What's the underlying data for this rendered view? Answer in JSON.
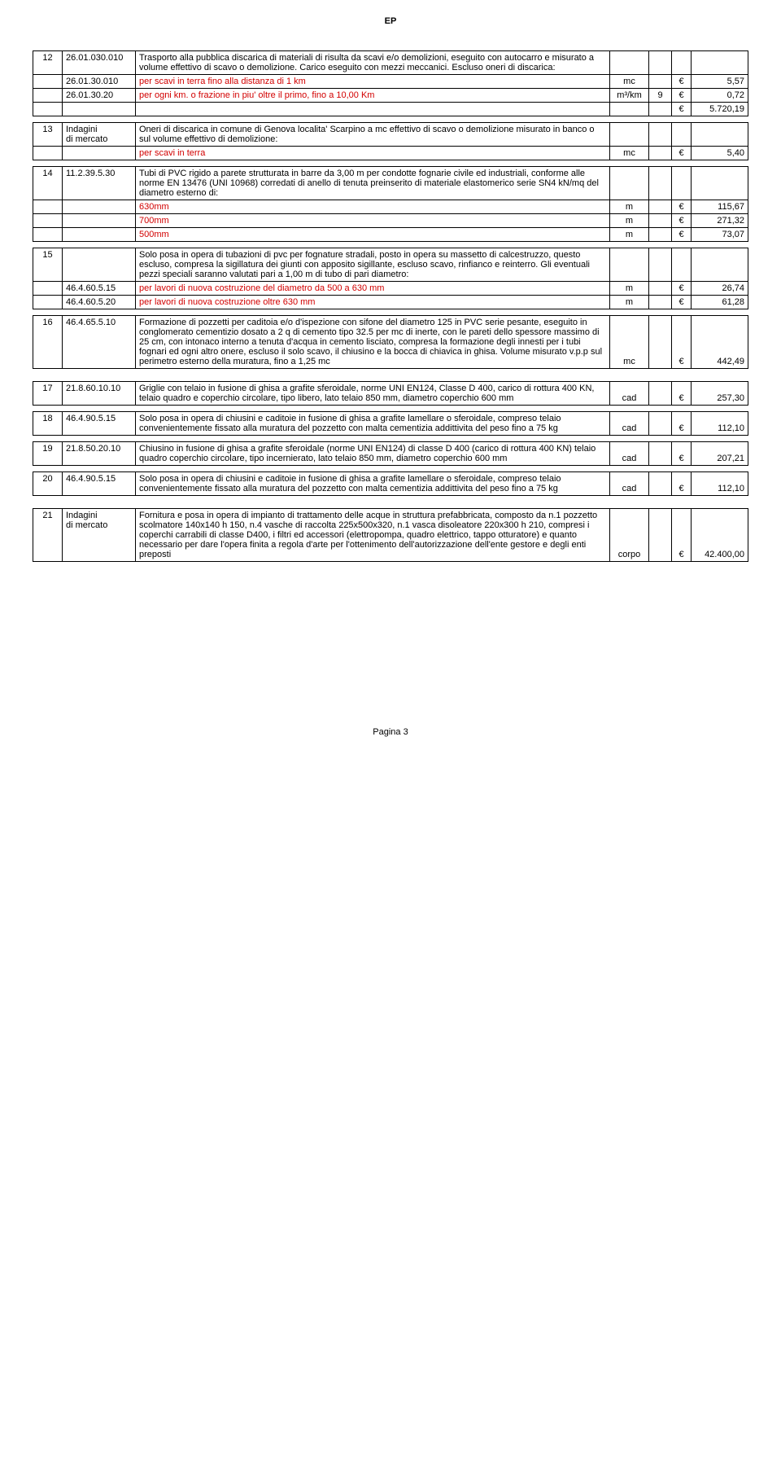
{
  "header": "EP",
  "footer": "Pagina 3",
  "col_widths": [
    "36px",
    "90px",
    "auto",
    "48px",
    "28px",
    "24px",
    "70px"
  ],
  "rows": [
    {
      "type": "data",
      "cells": [
        "12",
        "26.01.030.010",
        "Trasporto alla pubblica discarica di materiali  di risulta  da  scavi e/o demolizioni,  eseguito  con autocarro e misurato a volume effettivo di scavo o demolizione.  Carico eseguito con mezzi meccanici. Escluso oneri di discarica:",
        "",
        "",
        "",
        ""
      ]
    },
    {
      "type": "data",
      "cells": [
        "",
        "26.01.30.010",
        "per scavi in terra fino alla distanza di 1 km",
        "mc",
        "",
        "€",
        "5,57"
      ],
      "red_desc": true,
      "c4": "center",
      "c6": "center",
      "c7": "right"
    },
    {
      "type": "data",
      "cells": [
        "",
        "26.01.30.20",
        "per ogni km. o frazione in piu' oltre il primo, fino a 10,00 Km",
        "m³/km",
        "9",
        "€",
        "0,72"
      ],
      "red_desc": true,
      "c4": "center",
      "c5": "center",
      "c6": "center",
      "c7": "right"
    },
    {
      "type": "data",
      "cells": [
        "",
        "",
        "",
        "",
        "",
        "€",
        "5.720,19"
      ],
      "c6": "center",
      "c7": "right"
    },
    {
      "type": "spacer"
    },
    {
      "type": "data",
      "cells": [
        "13",
        "Indagini\ndi mercato",
        "Oneri di discarica in comune di Genova localita' Scarpino  a mc effettivo di scavo o demolizione misurato in banco o sul volume effettivo di demolizione:",
        "",
        "",
        "",
        ""
      ]
    },
    {
      "type": "data",
      "cells": [
        "",
        "",
        "per scavi in terra",
        "mc",
        "",
        "€",
        "5,40"
      ],
      "red_desc": true,
      "c4": "center",
      "c6": "center",
      "c7": "right"
    },
    {
      "type": "spacer"
    },
    {
      "type": "data",
      "cells": [
        "14",
        "11.2.39.5.30",
        "Tubi di PVC rigido a parete strutturata in barre da 3,00 m per condotte fognarie civile ed industriali, conforme alle norme EN 13476 (UNI 10968) corredati di anello di tenuta preinserito di materiale elastomerico serie SN4 kN/mq del diametro esterno di:",
        "",
        "",
        "",
        ""
      ]
    },
    {
      "type": "data",
      "cells": [
        "",
        "",
        "630mm",
        "m",
        "",
        "€",
        "115,67"
      ],
      "red_desc": true,
      "c4": "center",
      "c6": "center",
      "c7": "right"
    },
    {
      "type": "data",
      "cells": [
        "",
        "",
        "700mm",
        "m",
        "",
        "€",
        "271,32"
      ],
      "red_desc": true,
      "c4": "center",
      "c6": "center",
      "c7": "right"
    },
    {
      "type": "data",
      "cells": [
        "",
        "",
        "500mm",
        "m",
        "",
        "€",
        "73,07"
      ],
      "red_desc": true,
      "c4": "center",
      "c6": "center",
      "c7": "right"
    },
    {
      "type": "spacer"
    },
    {
      "type": "data",
      "cells": [
        "15",
        "",
        "Solo posa in opera di tubazioni di pvc per fognature stradali, posto in opera su massetto di calcestruzzo, questo escluso, compresa la sigillatura dei giunti con apposito sigillante, escluso scavo, rinfianco e reinterro. Gli eventuali pezzi speciali saranno valutati pari a 1,00 m di tubo di pari diametro:",
        "",
        "",
        "",
        ""
      ]
    },
    {
      "type": "data",
      "cells": [
        "",
        "46.4.60.5.15",
        "per lavori di nuova costruzione del diametro da 500 a 630 mm",
        "m",
        "",
        "€",
        "26,74"
      ],
      "red_desc": true,
      "c4": "center",
      "c6": "center",
      "c7": "right"
    },
    {
      "type": "data",
      "cells": [
        "",
        "46.4.60.5.20",
        "per lavori di nuova costruzione oltre 630 mm",
        "m",
        "",
        "€",
        "61,28"
      ],
      "red_desc": true,
      "c4": "center",
      "c6": "center",
      "c7": "right"
    },
    {
      "type": "spacer"
    },
    {
      "type": "data",
      "cells": [
        "16",
        "46.4.65.5.10",
        "Formazione di pozzetti per caditoia e/o d'ispezione con sifone del diametro 125 in PVC serie pesante, eseguito in conglomerato cementizio dosato a 2 q di cemento tipo 32.5 per mc di inerte, con le pareti dello spessore massimo di 25 cm, con intonaco interno a tenuta d'acqua in cemento lisciato, compresa la formazione degli innesti per i tubi fognari ed ogni altro onere, escluso il solo scavo, il chiusino e la bocca di chiavica in ghisa. Volume misurato v.p.p sul perimetro esterno della muratura, fino a 1,25 mc",
        "mc",
        "",
        "€",
        "442,49"
      ],
      "c4": "center",
      "c6": "center",
      "c7": "right",
      "valign_bottom": [
        "c4",
        "c6",
        "c7"
      ]
    },
    {
      "type": "spacer"
    },
    {
      "type": "spacer"
    },
    {
      "type": "data",
      "cells": [
        "17",
        "21.8.60.10.10",
        "Griglie con telaio in fusione di ghisa a grafite sferoidale, norme UNI EN124, Classe D 400, carico di rottura 400 KN, telaio quadro e coperchio circolare, tipo libero, lato telaio 850 mm, diametro coperchio 600 mm",
        "cad",
        "",
        "€",
        "257,30"
      ],
      "c4": "center",
      "c6": "center",
      "c7": "right",
      "valign_bottom": [
        "c4",
        "c6",
        "c7"
      ]
    },
    {
      "type": "spacer"
    },
    {
      "type": "data",
      "cells": [
        "18",
        "46.4.90.5.15",
        "Solo posa in opera di chiusini e caditoie in fusione di ghisa a grafite lamellare o sferoidale, compreso telaio convenientemente fissato alla muratura del pozzetto con malta cementizia addittivita del peso fino a 75 kg",
        "cad",
        "",
        "€",
        "112,10"
      ],
      "c4": "center",
      "c6": "center",
      "c7": "right",
      "valign_bottom": [
        "c4",
        "c6",
        "c7"
      ]
    },
    {
      "type": "spacer"
    },
    {
      "type": "data",
      "cells": [
        "19",
        "21.8.50.20.10",
        "Chiusino in fusione di ghisa a grafite sferoidale (norme UNI EN124) di classe D 400 (carico di rottura 400 KN) telaio quadro coperchio circolare, tipo incernierato, lato telaio 850 mm, diametro coperchio 600 mm",
        "cad",
        "",
        "€",
        "207,21"
      ],
      "c4": "center",
      "c6": "center",
      "c7": "right",
      "valign_bottom": [
        "c4",
        "c6",
        "c7"
      ]
    },
    {
      "type": "spacer"
    },
    {
      "type": "data",
      "cells": [
        "20",
        "46.4.90.5.15",
        "Solo posa in opera di chiusini e caditoie in fusione di ghisa a grafite lamellare o sferoidale, compreso telaio convenientemente fissato alla muratura del pozzetto con malta cementizia addittivita del peso fino a 75 kg",
        "cad",
        "",
        "€",
        "112,10"
      ],
      "c4": "center",
      "c6": "center",
      "c7": "right",
      "valign_bottom": [
        "c4",
        "c6",
        "c7"
      ]
    },
    {
      "type": "spacer"
    },
    {
      "type": "spacer"
    },
    {
      "type": "data",
      "cells": [
        "21",
        "Indagini\ndi mercato",
        "Fornitura e posa in opera di impianto di trattamento delle acque in struttura prefabbricata, composto da n.1 pozzetto scolmatore 140x140 h 150, n.4 vasche di raccolta 225x500x320, n.1 vasca disoleatore 220x300 h 210, compresi i coperchi carrabili di classe D400, i filtri ed accessori (elettropompa, quadro elettrico, tappo otturatore) e quanto necessario per dare l'opera finita a regola d'arte per l'ottenimento dell'autorizzazione dell'ente gestore e degli enti preposti",
        "corpo",
        "",
        "€",
        "42.400,00"
      ],
      "c4": "center",
      "c6": "center",
      "c7": "right",
      "valign_bottom": [
        "c4",
        "c6",
        "c7"
      ]
    },
    {
      "type": "thin-spacer"
    }
  ]
}
